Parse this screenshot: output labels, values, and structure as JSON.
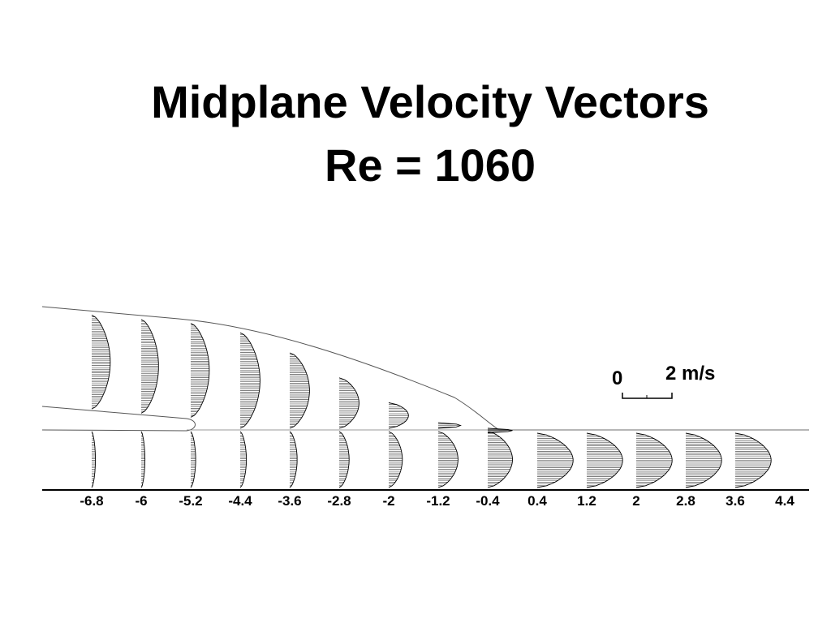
{
  "chart_data": {
    "type": "vector-profile",
    "title": "Midplane Velocity Vectors",
    "subtitle": "Re = 1060",
    "x": [
      "-6.8",
      "-6",
      "-5.2",
      "-4.4",
      "-3.6",
      "-2.8",
      "-2",
      "-1.2",
      "-0.4",
      "0.4",
      "1.2",
      "2",
      "2.8",
      "3.6",
      "4.4"
    ],
    "scale_legend": {
      "zero_label": "0",
      "max_label": "2 m/s",
      "max_value": 2
    },
    "profiles": [
      {
        "x": -6.8,
        "upper_peak": 0.75,
        "lower_peak": 0.15
      },
      {
        "x": -6.0,
        "upper_peak": 0.7,
        "lower_peak": 0.15
      },
      {
        "x": -5.2,
        "upper_peak": 0.75,
        "lower_peak": 0.2
      },
      {
        "x": -4.4,
        "upper_peak": 0.8,
        "lower_peak": 0.25
      },
      {
        "x": -3.6,
        "upper_peak": 0.8,
        "lower_peak": 0.3
      },
      {
        "x": -2.8,
        "upper_peak": 0.8,
        "lower_peak": 0.4
      },
      {
        "x": -2.0,
        "upper_peak": 0.8,
        "lower_peak": 0.55
      },
      {
        "x": -1.2,
        "upper_peak": 0.9,
        "lower_peak": 0.8
      },
      {
        "x": -0.4,
        "upper_peak": 1.0,
        "lower_peak": 1.0
      },
      {
        "x": 0.4,
        "upper_peak": 1.45,
        "lower_peak": 1.45
      },
      {
        "x": 1.2,
        "upper_peak": 1.45,
        "lower_peak": 1.45
      },
      {
        "x": 2.0,
        "upper_peak": 1.45,
        "lower_peak": 1.45
      },
      {
        "x": 2.8,
        "upper_peak": 1.45,
        "lower_peak": 1.45
      },
      {
        "x": 3.6,
        "upper_peak": 1.45,
        "lower_peak": 1.45
      }
    ]
  }
}
